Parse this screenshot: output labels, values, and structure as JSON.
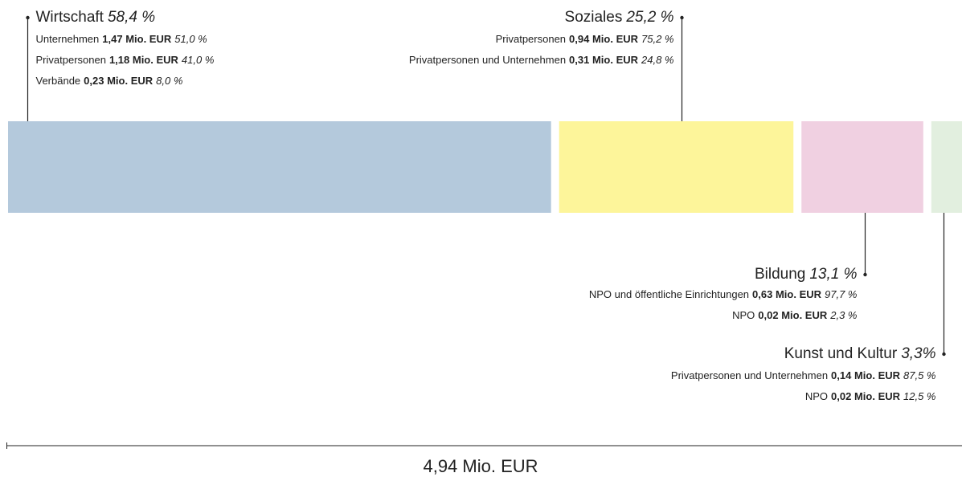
{
  "chart_data": {
    "type": "stacked-bar",
    "total": 4.94,
    "total_label": "4,94 Mio. EUR",
    "series": [
      {
        "name": "Wirtschaft",
        "color": "#b4c9dc",
        "value": 58.4,
        "value_label": "58,4 %",
        "items": [
          {
            "name": "Unternehmen",
            "amount": 1.47,
            "amount_label": "1,47 Mio. EUR",
            "share": 51.0,
            "share_label": "51,0 %"
          },
          {
            "name": "Privatpersonen",
            "amount": 1.18,
            "amount_label": "1,18 Mio. EUR",
            "share": 41.0,
            "share_label": "41,0 %"
          },
          {
            "name": "Verbände",
            "amount": 0.23,
            "amount_label": "0,23 Mio. EUR",
            "share": 8.0,
            "share_label": "8,0 %"
          }
        ]
      },
      {
        "name": "Soziales",
        "color": "#fdf59a",
        "value": 25.2,
        "value_label": "25,2 %",
        "items": [
          {
            "name": "Privatpersonen",
            "amount": 0.94,
            "amount_label": "0,94 Mio. EUR",
            "share": 75.2,
            "share_label": "75,2 %"
          },
          {
            "name": "Privatpersonen und Unternehmen",
            "amount": 0.31,
            "amount_label": "0,31 Mio. EUR",
            "share": 24.8,
            "share_label": "24,8 %"
          }
        ]
      },
      {
        "name": "Bildung",
        "color": "#f0d0e1",
        "value": 13.1,
        "value_label": "13,1 %",
        "items": [
          {
            "name": "NPO und öffentliche Einrichtungen",
            "amount": 0.63,
            "amount_label": "0,63 Mio. EUR",
            "share": 97.7,
            "share_label": "97,7 %"
          },
          {
            "name": "NPO",
            "amount": 0.02,
            "amount_label": "0,02 Mio. EUR",
            "share": 2.3,
            "share_label": "2,3 %"
          }
        ]
      },
      {
        "name": "Kunst und Kultur",
        "color": "#e2efdf",
        "value": 3.3,
        "value_label": "3,3%",
        "items": [
          {
            "name": "Privatpersonen und Unternehmen",
            "amount": 0.14,
            "amount_label": "0,14 Mio. EUR",
            "share": 87.5,
            "share_label": "87,5 %"
          },
          {
            "name": "NPO",
            "amount": 0.02,
            "amount_label": "0,02 Mio. EUR",
            "share": 12.5,
            "share_label": "12,5 %"
          }
        ]
      }
    ]
  }
}
